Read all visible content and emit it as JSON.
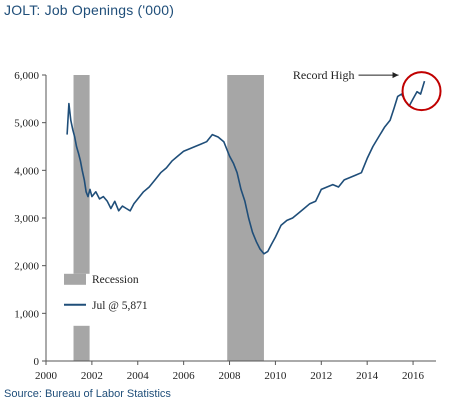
{
  "title": "JOLT: Job Openings ('000)",
  "source": "Source: Bureau of Labor Statistics",
  "chart_data": {
    "type": "line",
    "title": "JOLT: Job Openings ('000)",
    "xlim": [
      2000,
      2017
    ],
    "ylim": [
      0,
      6000
    ],
    "x_ticks": [
      2000,
      2002,
      2004,
      2006,
      2008,
      2010,
      2012,
      2014,
      2016
    ],
    "x_tick_labels": [
      "2000",
      "2002",
      "2004",
      "2006",
      "2008",
      "2010",
      "2012",
      "2014",
      "2016"
    ],
    "y_ticks": [
      0,
      1000,
      2000,
      3000,
      4000,
      5000,
      6000
    ],
    "y_tick_labels": [
      "0",
      "1,000",
      "2,000",
      "3,000",
      "4,000",
      "5,000",
      "6,000"
    ],
    "recessions": [
      [
        2001.2,
        2001.9
      ],
      [
        2007.9,
        2009.5
      ]
    ],
    "legend": {
      "placement": "bottom-left",
      "recession_label": "Recession",
      "series_label": "Jul @ 5,871"
    },
    "annotation": {
      "text": "Record High",
      "x": 2016.5,
      "y": 5871
    },
    "colors": {
      "series": "#1f4e79",
      "recession": "#a6a6a6",
      "highlight": "#c00000"
    },
    "series": [
      {
        "x": [
          2000.92,
          2001.0,
          2001.08,
          2001.17,
          2001.25,
          2001.33,
          2001.42,
          2001.5,
          2001.58,
          2001.67,
          2001.75,
          2001.83,
          2001.92,
          2002.0,
          2002.17,
          2002.33,
          2002.5,
          2002.67,
          2002.83,
          2003.0,
          2003.17,
          2003.33,
          2003.5,
          2003.67,
          2003.83,
          2004.0,
          2004.25,
          2004.5,
          2004.75,
          2005.0,
          2005.25,
          2005.5,
          2005.75,
          2006.0,
          2006.25,
          2006.5,
          2006.75,
          2007.0,
          2007.25,
          2007.5,
          2007.75,
          2008.0,
          2008.17,
          2008.33,
          2008.5,
          2008.67,
          2008.83,
          2009.0,
          2009.17,
          2009.33,
          2009.5,
          2009.67,
          2009.83,
          2010.0,
          2010.25,
          2010.5,
          2010.75,
          2011.0,
          2011.25,
          2011.5,
          2011.75,
          2012.0,
          2012.25,
          2012.5,
          2012.75,
          2013.0,
          2013.25,
          2013.5,
          2013.75,
          2014.0,
          2014.25,
          2014.5,
          2014.75,
          2015.0,
          2015.17,
          2015.33,
          2015.5,
          2015.67,
          2015.83,
          2016.0,
          2016.17,
          2016.33,
          2016.5
        ],
        "y": [
          4750,
          5400,
          5050,
          4850,
          4700,
          4500,
          4350,
          4200,
          4000,
          3800,
          3550,
          3450,
          3600,
          3450,
          3550,
          3400,
          3450,
          3350,
          3200,
          3350,
          3150,
          3250,
          3200,
          3150,
          3300,
          3400,
          3550,
          3650,
          3800,
          3950,
          4050,
          4200,
          4300,
          4400,
          4450,
          4500,
          4550,
          4600,
          4750,
          4700,
          4600,
          4300,
          4150,
          3950,
          3600,
          3350,
          3000,
          2700,
          2500,
          2350,
          2250,
          2300,
          2450,
          2600,
          2850,
          2950,
          3000,
          3100,
          3200,
          3300,
          3350,
          3600,
          3650,
          3700,
          3650,
          3800,
          3850,
          3900,
          3950,
          4250,
          4500,
          4700,
          4900,
          5050,
          5300,
          5550,
          5600,
          5450,
          5350,
          5500,
          5650,
          5600,
          5871
        ]
      }
    ]
  }
}
